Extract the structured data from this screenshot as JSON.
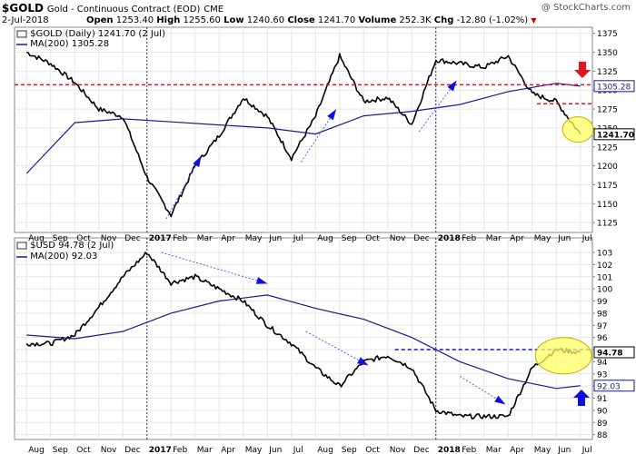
{
  "header": {
    "symbol": "$GOLD",
    "name": "Gold - Continuous Contract (EOD)",
    "exchange": "CME",
    "date": "2-Jul-2018",
    "open_label": "Open",
    "open": "1253.40",
    "high_label": "High",
    "high": "1255.60",
    "low_label": "Low",
    "low": "1240.60",
    "close_label": "Close",
    "close": "1241.70",
    "volume_label": "Volume",
    "volume": "252.3K",
    "chg_label": "Chg",
    "chg": "-12.80 (-1.02%)",
    "watermark": "@ StockCharts.com"
  },
  "colors": {
    "price": "#000000",
    "ma": "#1a1a8c",
    "red_line": "#e0141e",
    "blue_line": "#1010c8",
    "trend": "#5a5aff",
    "highlight_fill": "#ffff66",
    "highlight_stroke": "#b8b800",
    "arrow_blue": "#1010e0",
    "arrow_red": "#e0141e",
    "grid": "#e6e6e6"
  },
  "chart_data": [
    {
      "type": "line",
      "title": "$GOLD (Daily) 1241.70 (2 Jul)",
      "legend": [
        "$GOLD (Daily) 1241.70 (2 Jul)",
        "MA(200) 1305.28"
      ],
      "x_start": "Aug 2016",
      "x_end": "Jul 2018",
      "ylim": [
        1112,
        1383
      ],
      "yticks": [
        1125,
        1150,
        1175,
        1200,
        1225,
        1250,
        1275,
        1300,
        1325,
        1350,
        1375
      ],
      "price_label": "1241.70",
      "ma_label": "1305.28",
      "series": [
        {
          "name": "$GOLD (Daily) 1241.70 (2 Jul)",
          "x": [
            "Aug 2016",
            "Sep 2016",
            "Oct 2016",
            "Nov 2016",
            "Dec 2016",
            "Jan 2017",
            "Feb 2017",
            "Mar 2017",
            "Apr 2017",
            "May 2017",
            "Jun 2017",
            "Jul 2017",
            "Aug 2017",
            "Sep 2017",
            "Oct 2017",
            "Nov 2017",
            "Dec 2017",
            "Jan 2018",
            "Feb 2018",
            "Mar 2018",
            "Apr 2018",
            "May 2018",
            "Jun 2018",
            "Jul 2018"
          ],
          "values": [
            1350,
            1335,
            1310,
            1275,
            1265,
            1185,
            1135,
            1200,
            1240,
            1290,
            1265,
            1210,
            1265,
            1345,
            1285,
            1290,
            1255,
            1340,
            1335,
            1330,
            1345,
            1295,
            1285,
            1241.7
          ]
        },
        {
          "name": "MA(200) 1305.28",
          "x": [
            "Aug 2016",
            "Oct 2016",
            "Dec 2016",
            "Feb 2017",
            "Apr 2017",
            "Jun 2017",
            "Aug 2017",
            "Oct 2017",
            "Dec 2017",
            "Feb 2018",
            "Apr 2018",
            "Jun 2018",
            "Jul 2018"
          ],
          "values": [
            1190,
            1257,
            1262,
            1258,
            1254,
            1250,
            1242,
            1266,
            1272,
            1281,
            1298,
            1309,
            1305.28
          ]
        }
      ]
    },
    {
      "type": "line",
      "title": "$USD 94.78 (2 Jul)",
      "legend": [
        "$USD 94.78 (2 Jul)",
        "MA(200) 92.03"
      ],
      "ylim": [
        87.6,
        104.2
      ],
      "yticks": [
        88,
        89,
        90,
        91,
        92,
        93,
        94,
        95,
        96,
        97,
        98,
        99,
        100,
        101,
        102,
        103
      ],
      "price_label": "94.78",
      "ma_label": "92.03",
      "series": [
        {
          "name": "$USD 94.78 (2 Jul)",
          "x": [
            "Aug 2016",
            "Sep 2016",
            "Oct 2016",
            "Nov 2016",
            "Dec 2016",
            "Jan 2017",
            "Feb 2017",
            "Mar 2017",
            "Apr 2017",
            "May 2017",
            "Jun 2017",
            "Jul 2017",
            "Aug 2017",
            "Sep 2017",
            "Oct 2017",
            "Nov 2017",
            "Dec 2017",
            "Jan 2018",
            "Feb 2018",
            "Mar 2018",
            "Apr 2018",
            "May 2018",
            "Jun 2018",
            "Jul 2018"
          ],
          "values": [
            95.5,
            95.5,
            96.2,
            98.5,
            101,
            103,
            100.5,
            101,
            100,
            99,
            97,
            95.5,
            93.5,
            92,
            94,
            94.5,
            93.5,
            90,
            89.5,
            89.5,
            89.5,
            93.5,
            95,
            94.78
          ]
        },
        {
          "name": "MA(200) 92.03",
          "x": [
            "Aug 2016",
            "Oct 2016",
            "Dec 2016",
            "Feb 2017",
            "Apr 2017",
            "Jun 2017",
            "Aug 2017",
            "Oct 2017",
            "Dec 2017",
            "Feb 2018",
            "Apr 2018",
            "Jun 2018",
            "Jul 2018"
          ],
          "values": [
            96.2,
            95.9,
            96.5,
            98,
            99,
            99.5,
            98.4,
            97.5,
            96,
            94,
            92.6,
            91.8,
            92.03
          ]
        }
      ]
    }
  ],
  "x_axis": {
    "labels": [
      "Aug",
      "Sep",
      "Oct",
      "Nov",
      "Dec",
      "2017",
      "Feb",
      "Mar",
      "Apr",
      "May",
      "Jun",
      "Jul",
      "Aug",
      "Sep",
      "Oct",
      "Nov",
      "Dec",
      "2018",
      "Feb",
      "Mar",
      "Apr",
      "May",
      "Jun",
      "Jul"
    ],
    "bold": [
      "2017",
      "2018"
    ]
  }
}
